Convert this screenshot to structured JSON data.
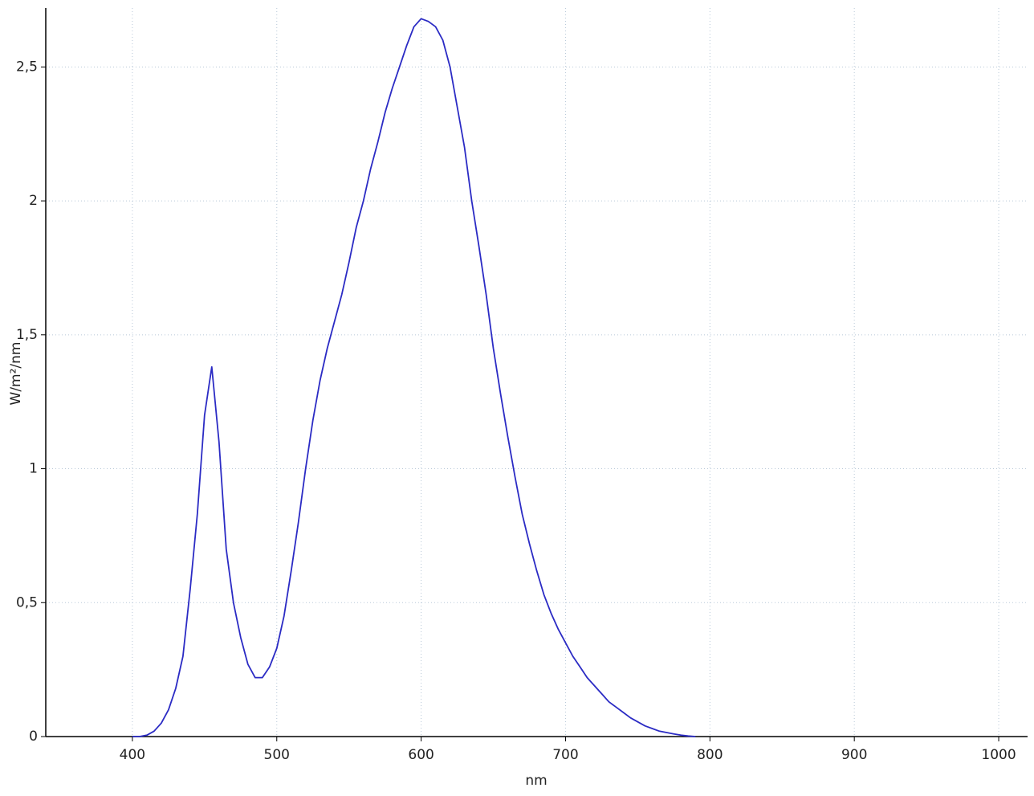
{
  "chart_data": {
    "type": "line",
    "x_label": "nm",
    "y_label": "W/m²/nm",
    "x": [
      400,
      405,
      410,
      415,
      420,
      425,
      430,
      435,
      440,
      445,
      450,
      455,
      460,
      465,
      470,
      475,
      480,
      485,
      490,
      495,
      500,
      505,
      510,
      515,
      520,
      525,
      530,
      535,
      540,
      545,
      550,
      555,
      560,
      565,
      570,
      575,
      580,
      585,
      590,
      595,
      600,
      605,
      610,
      615,
      620,
      625,
      630,
      635,
      640,
      645,
      650,
      655,
      660,
      665,
      670,
      675,
      680,
      685,
      690,
      695,
      700,
      705,
      710,
      715,
      720,
      725,
      730,
      735,
      740,
      745,
      750,
      755,
      760,
      765,
      770,
      775,
      780,
      785,
      790
    ],
    "series": [
      {
        "color": "#2b2bc4",
        "values": [
          0,
          0,
          0.005,
          0.02,
          0.05,
          0.1,
          0.18,
          0.3,
          0.55,
          0.83,
          1.2,
          1.38,
          1.1,
          0.7,
          0.5,
          0.37,
          0.27,
          0.22,
          0.22,
          0.26,
          0.33,
          0.45,
          0.62,
          0.8,
          1.0,
          1.18,
          1.33,
          1.45,
          1.55,
          1.65,
          1.77,
          1.9,
          2.0,
          2.12,
          2.22,
          2.33,
          2.42,
          2.5,
          2.58,
          2.65,
          2.68,
          2.67,
          2.65,
          2.6,
          2.5,
          2.35,
          2.2,
          2.0,
          1.83,
          1.65,
          1.45,
          1.28,
          1.12,
          0.97,
          0.83,
          0.72,
          0.62,
          0.53,
          0.46,
          0.4,
          0.35,
          0.3,
          0.26,
          0.22,
          0.19,
          0.16,
          0.13,
          0.11,
          0.09,
          0.07,
          0.055,
          0.04,
          0.03,
          0.02,
          0.015,
          0.01,
          0.005,
          0.002,
          0
        ]
      }
    ],
    "xlim": [
      340,
      1020
    ],
    "ylim": [
      0,
      2.72
    ],
    "xticks": [
      400,
      500,
      600,
      700,
      800,
      900,
      1000
    ],
    "yticks": [
      0,
      {
        "value": 0.5,
        "label": "0,5"
      },
      1,
      {
        "value": 1.5,
        "label": "1,5"
      },
      2,
      {
        "value": 2.5,
        "label": "2,5"
      }
    ],
    "grid": true
  }
}
